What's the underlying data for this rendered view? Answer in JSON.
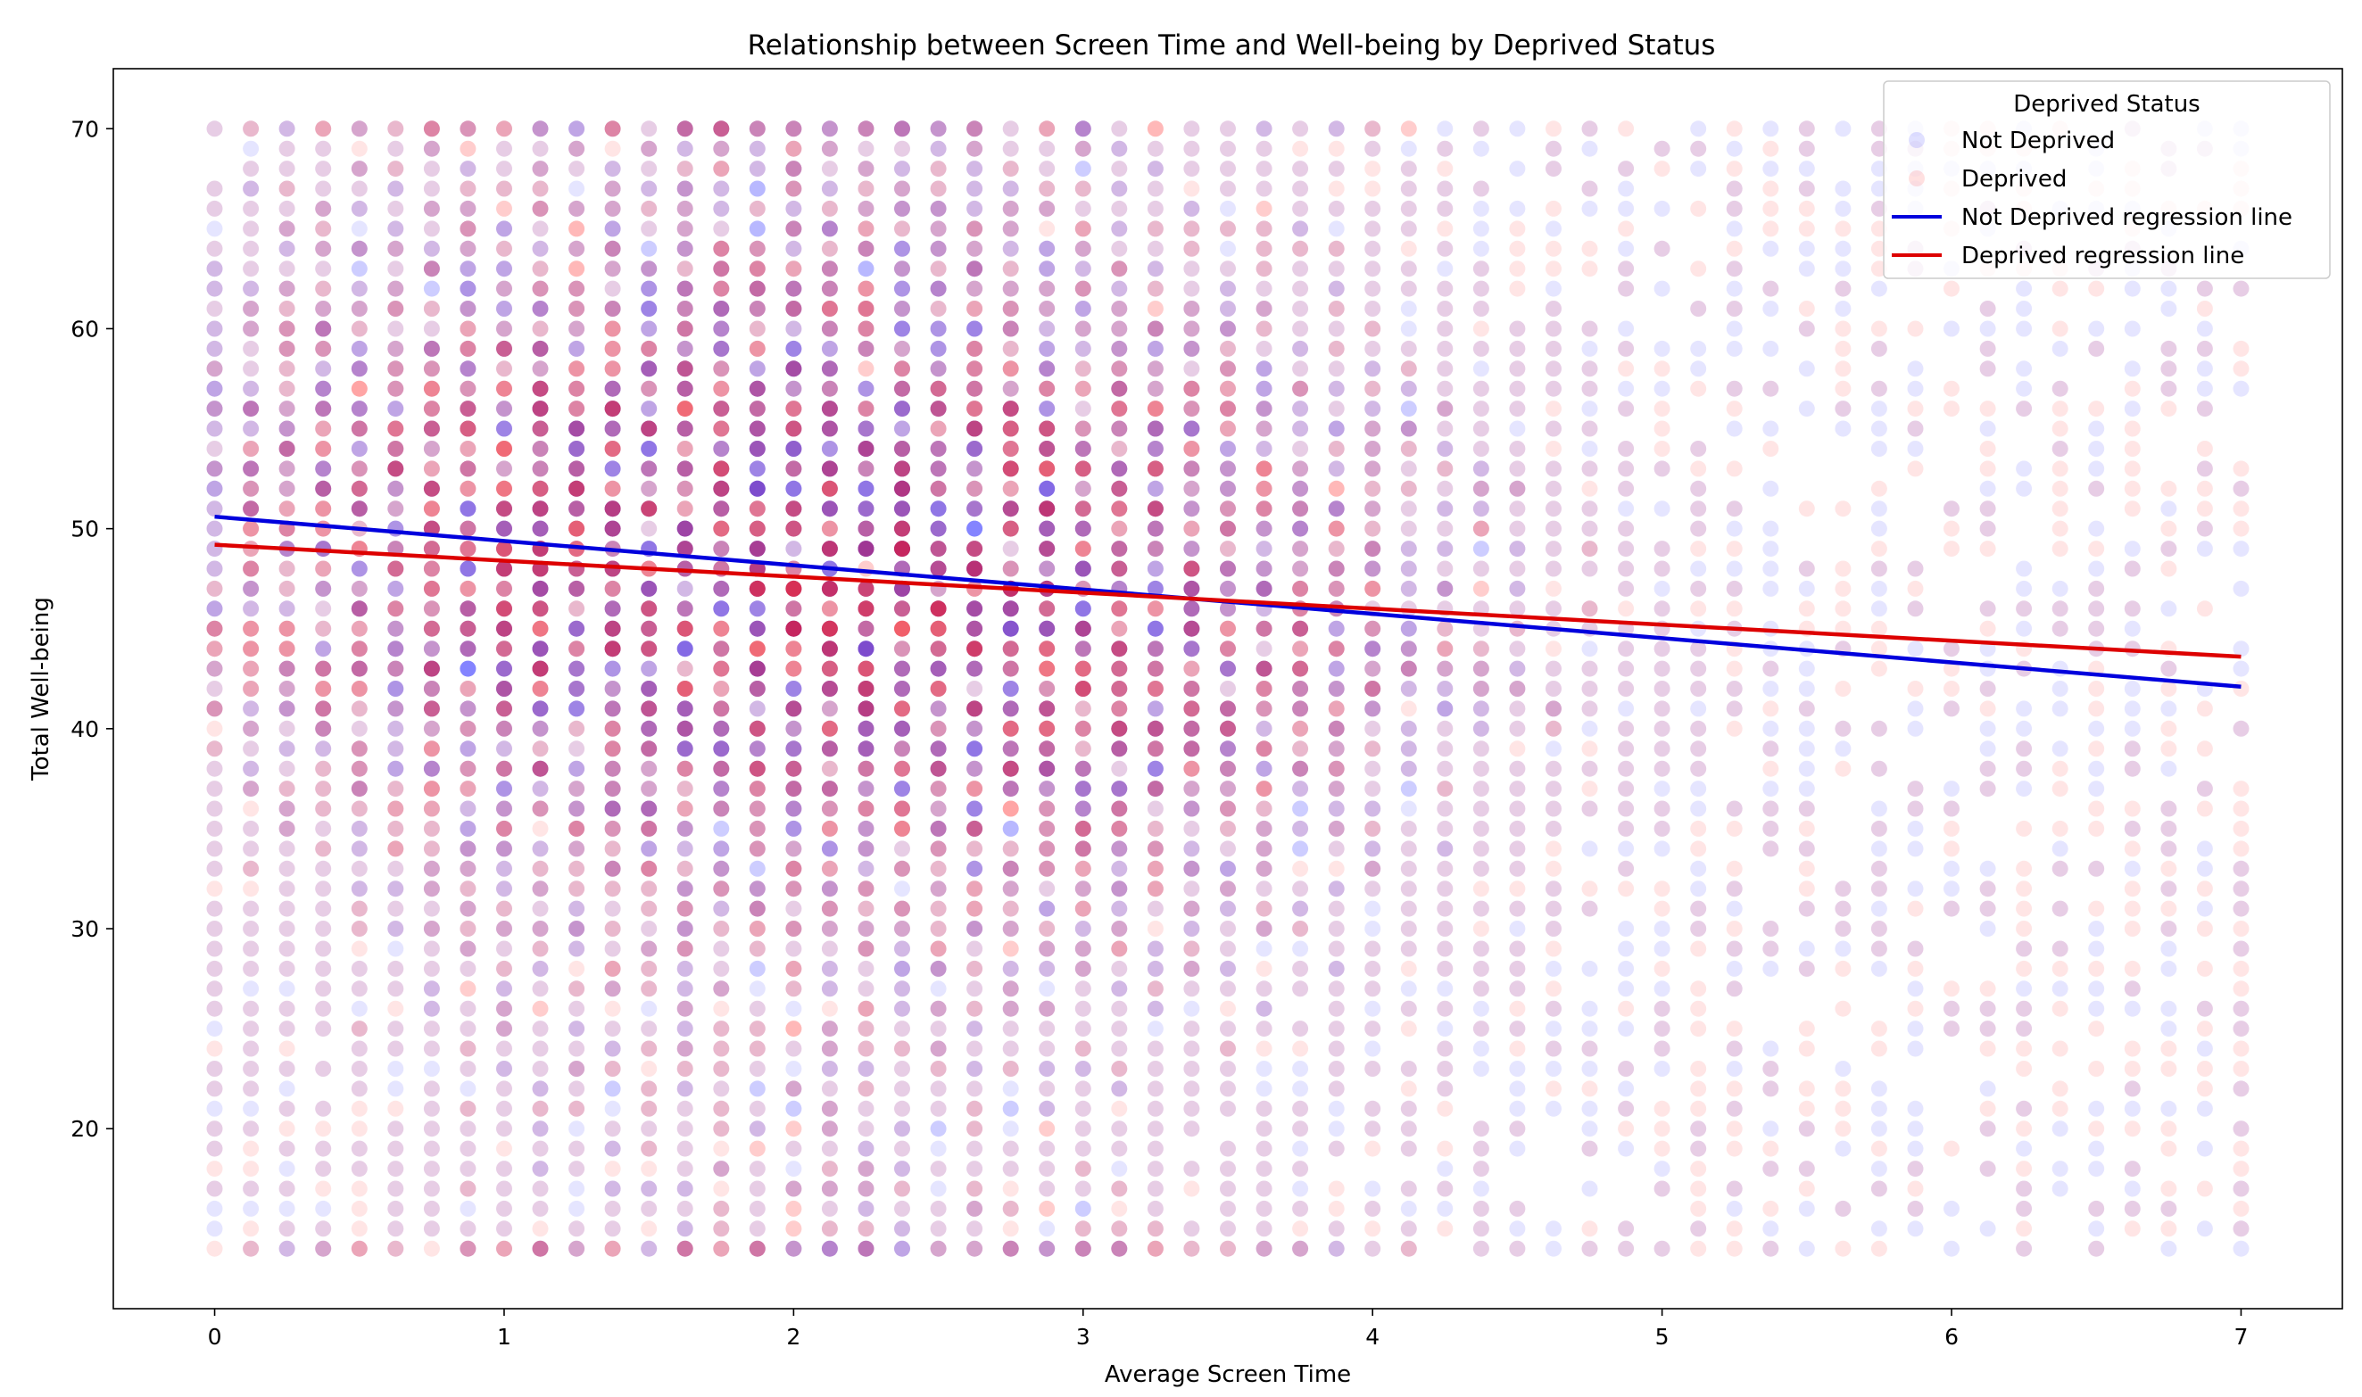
{
  "chart_data": {
    "type": "scatter",
    "title": "Relationship between Screen Time and Well-being by Deprived Status",
    "xlabel": "Average Screen Time",
    "ylabel": "Total Well-being",
    "xlim": [
      -0.35,
      7.35
    ],
    "ylim": [
      11,
      73
    ],
    "xticks": [
      0,
      1,
      2,
      3,
      4,
      5,
      6,
      7
    ],
    "yticks": [
      20,
      30,
      40,
      50,
      60,
      70
    ],
    "grid": false,
    "legend": {
      "title": "Deprived Status",
      "placement": "top-right",
      "entries": [
        "Not Deprived",
        "Deprived",
        "Not Deprived regression line",
        "Deprived regression line"
      ]
    },
    "x_step": 0.125,
    "y_step": 1,
    "point_alpha": 0.1,
    "series": [
      {
        "name": "Not Deprived",
        "color": "#0000ff",
        "regression_line": {
          "name": "Not Deprived regression line",
          "color": "#0000dd",
          "x": [
            0,
            7
          ],
          "y": [
            50.6,
            42.1
          ]
        }
      },
      {
        "name": "Deprived",
        "color": "#ff0000",
        "regression_line": {
          "name": "Deprived regression line",
          "color": "#dd0000",
          "x": [
            0,
            7
          ],
          "y": [
            49.2,
            43.6
          ]
        }
      }
    ]
  }
}
